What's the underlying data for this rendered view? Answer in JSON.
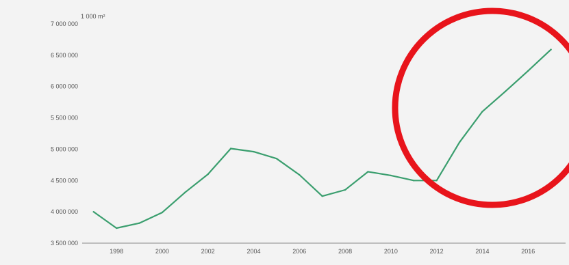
{
  "chart_data": {
    "type": "line",
    "title": "",
    "xlabel": "",
    "ylabel": "",
    "unit_label": "1 000 m²",
    "x": [
      1997,
      1998,
      1999,
      2000,
      2001,
      2002,
      2003,
      2004,
      2005,
      2006,
      2007,
      2008,
      2009,
      2010,
      2011,
      2012,
      2013,
      2014,
      2015,
      2016,
      2017
    ],
    "series": [
      {
        "values": [
          4000000,
          3740000,
          3820000,
          3990000,
          4310000,
          4600000,
          5010000,
          4960000,
          4850000,
          4590000,
          4250000,
          4350000,
          4640000,
          4580000,
          4500000,
          4500000,
          5110000,
          5600000,
          5920000,
          6250000,
          6590000
        ],
        "color": "#3a9e6e"
      }
    ],
    "xlim": [
      1996.5,
      2017.4
    ],
    "ylim": [
      3500000,
      7000000
    ],
    "x_ticks": [
      "1998",
      "2000",
      "2002",
      "2004",
      "2006",
      "2008",
      "2010",
      "2012",
      "2014",
      "2016"
    ],
    "y_ticks": [
      "7 000 000",
      "6 500 000",
      "6 000 000",
      "5 500 000",
      "5 000 000",
      "4 500 000",
      "4 000 000",
      "3 500 000"
    ],
    "grid": false
  },
  "annotation": {
    "shape": "circle",
    "color": "#e8141b"
  }
}
